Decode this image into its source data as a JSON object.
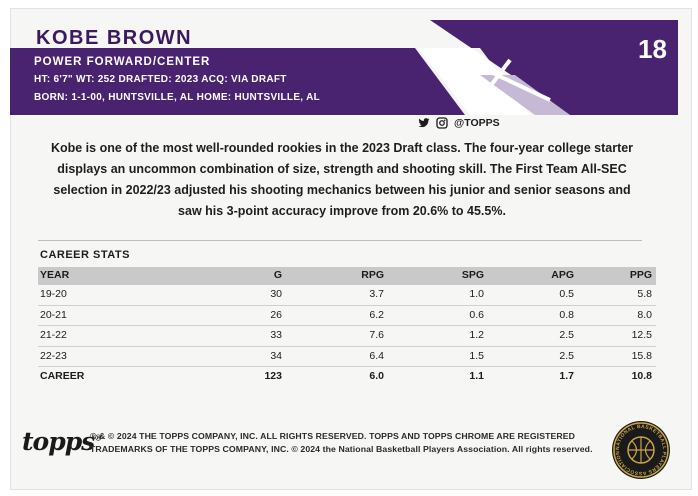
{
  "header": {
    "player_name": "KOBE BROWN",
    "position": "POWER FORWARD/CENTER",
    "bio_line_1": "HT: 6'7\"  WT: 252  DRAFTED: 2023  ACQ: VIA DRAFT",
    "bio_line_2": "BORN: 1-1-00, HUNTSVILLE, AL  HOME: HUNTSVILLE, AL",
    "card_number": "18"
  },
  "social": {
    "handle": "@TOPPS",
    "icons": [
      "twitter-icon",
      "instagram-icon"
    ]
  },
  "blurb": "Kobe is one of the most well-rounded rookies in the 2023 Draft class. The four-year college starter displays an uncommon combination of size, strength and shooting skill. The First Team All-SEC selection in 2022/23 adjusted his shooting mechanics between his junior and senior seasons and saw his 3-point accuracy improve from 20.6% to 45.5%.",
  "stats": {
    "title": "CAREER STATS",
    "headers": {
      "year": "YEAR",
      "g": "G",
      "rpg": "RPG",
      "spg": "SPG",
      "apg": "APG",
      "ppg": "PPG"
    },
    "rows": [
      {
        "year": "19-20",
        "g": "30",
        "rpg": "3.7",
        "spg": "1.0",
        "apg": "0.5",
        "ppg": "5.8"
      },
      {
        "year": "20-21",
        "g": "26",
        "rpg": "6.2",
        "spg": "0.6",
        "apg": "0.8",
        "ppg": "8.0"
      },
      {
        "year": "21-22",
        "g": "33",
        "rpg": "7.6",
        "spg": "1.2",
        "apg": "2.5",
        "ppg": "12.5"
      },
      {
        "year": "22-23",
        "g": "34",
        "rpg": "6.4",
        "spg": "1.5",
        "apg": "2.5",
        "ppg": "15.8"
      }
    ],
    "career": {
      "year": "CAREER",
      "g": "123",
      "rpg": "6.0",
      "spg": "1.1",
      "apg": "1.7",
      "ppg": "10.8"
    }
  },
  "footer": {
    "logo": "topps",
    "logo_mark": "®",
    "legal_line_1": "® & © 2024 THE TOPPS COMPANY, INC. ALL RIGHTS RESERVED. TOPPS AND TOPPS CHROME ARE REGISTERED",
    "legal_line_2": "TRADEMARKS OF THE TOPPS COMPANY, INC. © 2024 the National Basketball Players Association. All rights reserved.",
    "seal_text": "NATIONAL BASKETBALL PLAYERS ASSOCIATION"
  },
  "colors": {
    "purple": "#4a2370",
    "purple_dark": "#3b1a5e",
    "stats_header_bg": "#c9c9c9"
  }
}
